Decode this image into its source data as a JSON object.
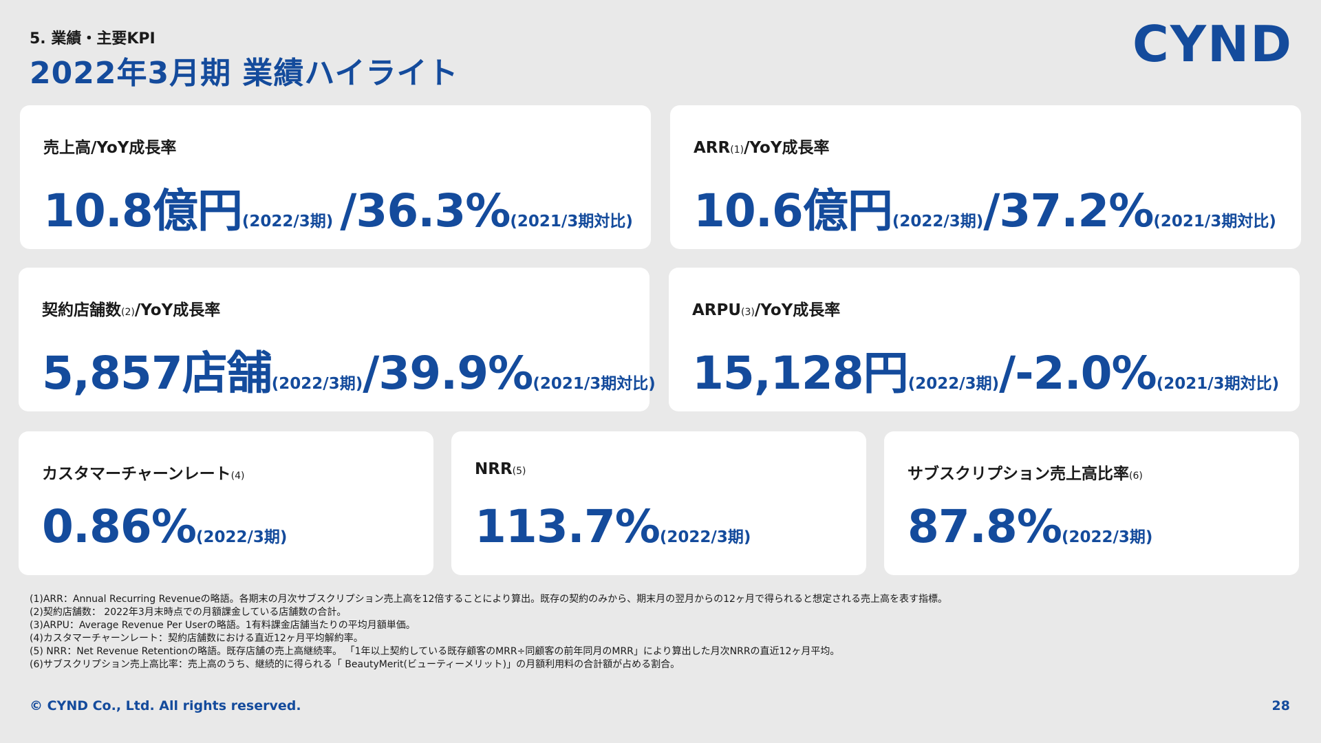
{
  "header": {
    "section_label": "5. 業績・主要KPI",
    "title": "2022年3月期 業績ハイライト",
    "logo_text": "CYND"
  },
  "cards": {
    "revenue": {
      "label": "売上高/YoY成長率",
      "value": "10.8億円",
      "period": "(2022/3期)",
      "separator": "/",
      "growth": "36.3%",
      "comparison": "(2021/3期対比)"
    },
    "arr": {
      "label": "ARR",
      "footnote": "(1)",
      "label_suffix": "/YoY成長率",
      "value": "10.6億円",
      "period": "(2022/3期)",
      "separator": "/",
      "growth": "37.2%",
      "comparison": "(2021/3期対比)"
    },
    "stores": {
      "label": "契約店舗数",
      "footnote": "(2)",
      "label_suffix": "/YoY成長率",
      "value": "5,857店舗",
      "period": "(2022/3期)",
      "separator": "/",
      "growth": "39.9%",
      "comparison": "(2021/3期対比)"
    },
    "arpu": {
      "label": "ARPU",
      "footnote": "(3)",
      "label_suffix": "/YoY成長率",
      "value": "15,128円",
      "period": "(2022/3期)",
      "separator": "/",
      "growth": "-2.0%",
      "comparison": "(2021/3期対比)"
    },
    "churn": {
      "label": "カスタマーチャーンレート",
      "footnote": "(4)",
      "value": "0.86%",
      "period": "(2022/3期)"
    },
    "nrr": {
      "label": "NRR",
      "footnote": "(5)",
      "value": "113.7%",
      "period": "(2022/3期)"
    },
    "subscription": {
      "label": "サブスクリプション売上高比率",
      "footnote": "(6)",
      "value": "87.8%",
      "period": "(2022/3期)"
    }
  },
  "footnotes": [
    "(1)ARR：Annual Recurring Revenueの略語。各期末の月次サブスクリプション売上高を12倍することにより算出。既存の契約のみから、期末月の翌月からの12ヶ月で得られると想定される売上高を表す指標。",
    "(2)契約店舗数： 2022年3月末時点での月額課金している店舗数の合計。",
    "(3)ARPU：Average Revenue Per Userの略語。1有料課金店舗当たりの平均月額単価。",
    "(4)カスタマーチャーンレート：契約店舗数における直近12ヶ月平均解約率。",
    "(5) NRR：Net Revenue Retentionの略語。既存店舗の売上高継続率。 「1年以上契約している既存顧客のMRR÷同顧客の前年同月のMRR」により算出した月次NRRの直近12ヶ月平均。",
    "(6)サブスクリプション売上高比率：売上高のうち、継続的に得られる「 BeautyMerit(ビューティーメリット)」の月額利用料の合計額が占める割合。"
  ],
  "footer": {
    "copyright": "© CYND Co., Ltd. All rights reserved.",
    "page_number": "28"
  },
  "colors": {
    "accent": "#144b9c",
    "background": "#e9e9e9",
    "card": "#ffffff"
  }
}
